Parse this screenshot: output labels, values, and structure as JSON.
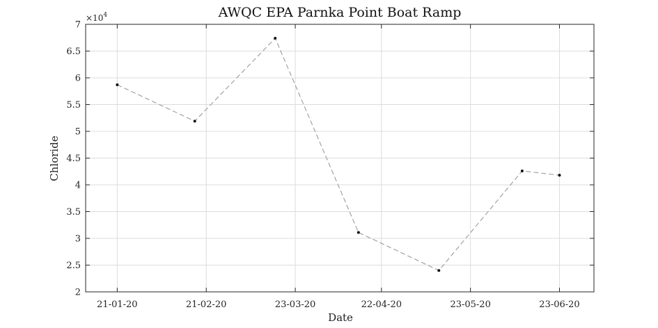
{
  "chart_data": {
    "type": "line",
    "title": "AWQC EPA Parnka Point Boat Ramp",
    "xlabel": "Date",
    "ylabel": "Chloride",
    "y_multiplier": "×10",
    "y_exponent": "4",
    "x_range": [
      "2020-01-10",
      "2020-07-05"
    ],
    "ylim": [
      2,
      7
    ],
    "y_scale_factor": 10000,
    "x_ticks": [
      "2020-01-21",
      "2020-02-21",
      "2020-03-23",
      "2020-04-22",
      "2020-05-23",
      "2020-06-23"
    ],
    "x_tick_labels": [
      "21-01-20",
      "21-02-20",
      "23-03-20",
      "22-04-20",
      "23-05-20",
      "23-06-20"
    ],
    "y_ticks": [
      2,
      2.5,
      3,
      3.5,
      4,
      4.5,
      5,
      5.5,
      6,
      6.5,
      7
    ],
    "y_tick_labels": [
      "2",
      "2.5",
      "3",
      "3.5",
      "4",
      "4.5",
      "5",
      "5.5",
      "6",
      "6.5",
      "7"
    ],
    "grid": true,
    "series": [
      {
        "x": [
          "2020-01-21",
          "2020-02-17",
          "2020-03-16",
          "2020-04-14",
          "2020-05-12",
          "2020-06-10",
          "2020-06-23"
        ],
        "y": [
          58700,
          51900,
          67400,
          31100,
          24000,
          42600,
          41800
        ]
      }
    ]
  }
}
